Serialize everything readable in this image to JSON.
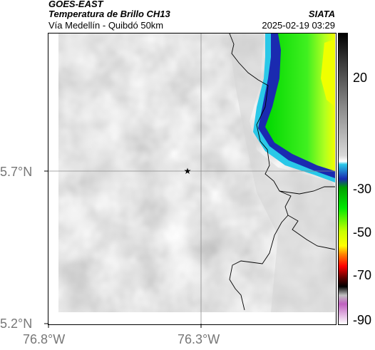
{
  "header": {
    "product": "GOES-EAST",
    "title": "Temperatura de Brillo CH13",
    "subtitle": "Vía Medellín - Quibdó 50km",
    "org": "SIATA",
    "timestamp": "2025-02-19 03:29"
  },
  "map": {
    "lat_labels": [
      "5.7°N",
      "5.2°N"
    ],
    "lon_labels": [
      "76.8°W",
      "76.3°W"
    ],
    "grid": true,
    "marker_icon": "star-icon"
  },
  "colorbar": {
    "ticks": [
      "20",
      "-30",
      "-50",
      "-70",
      "-90"
    ],
    "colors": [
      "#000000",
      "#9a9a9a",
      "#2a8cd8",
      "#00e000",
      "#ffff00",
      "#ff2000",
      "#900000",
      "#c0c0c0",
      "#c030c0"
    ]
  }
}
